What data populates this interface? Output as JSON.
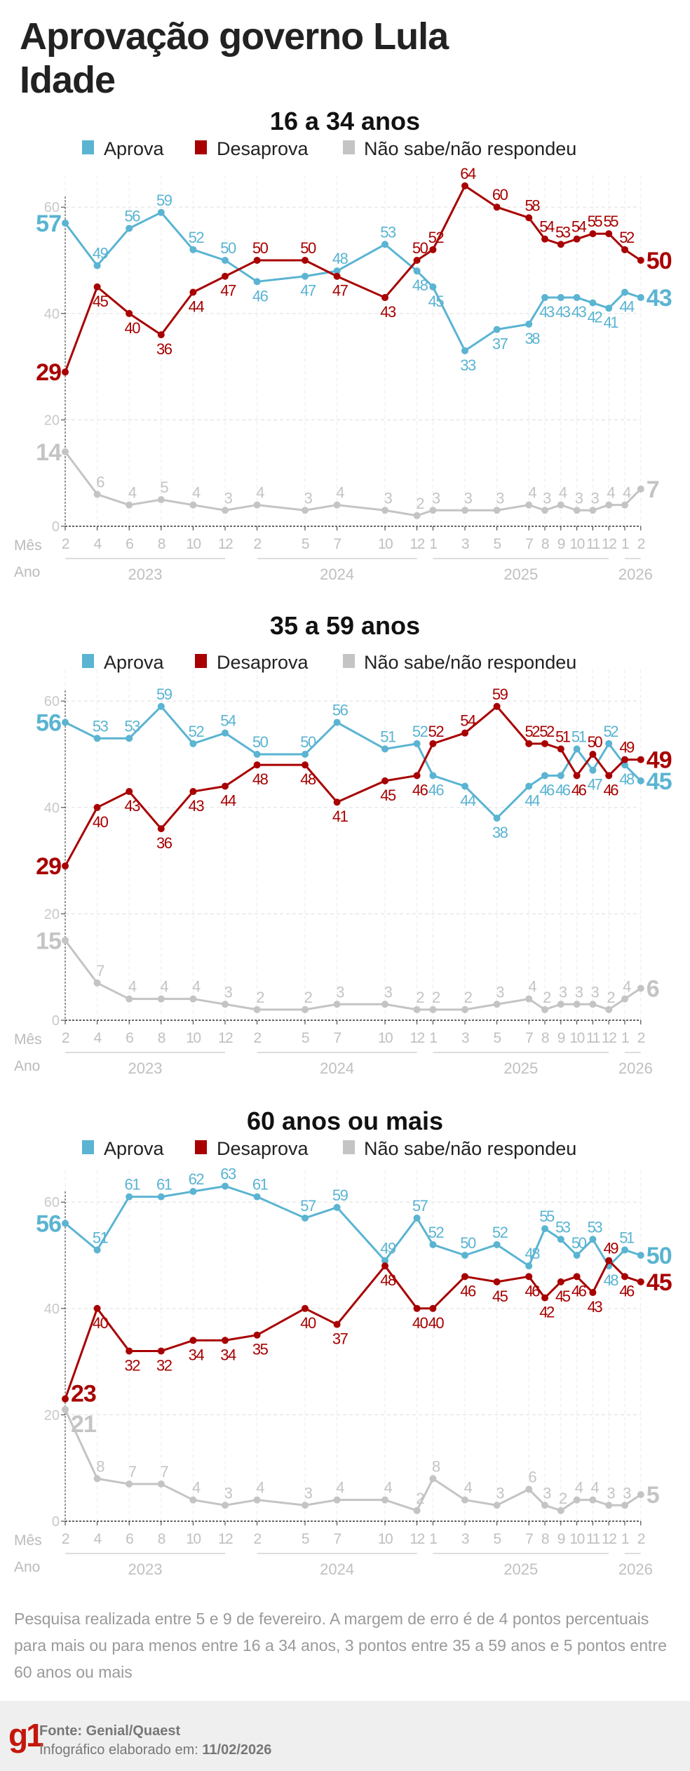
{
  "header": {
    "title_line1": "Aprovação governo Lula",
    "title_line2": "Idade"
  },
  "colors": {
    "aprova": "#5ab4d2",
    "desaprova": "#a80000",
    "nao_sabe": "#c4c4c4"
  },
  "legend": [
    "Aprova",
    "Desaprova",
    "Não sabe/não respondeu"
  ],
  "axis_labels": {
    "month": "Mês",
    "year": "Ano"
  },
  "chart_data": [
    {
      "type": "line",
      "title": "16 a 34 anos",
      "x": [
        "2023-02",
        "2023-04",
        "2023-06",
        "2023-08",
        "2023-10",
        "2023-12",
        "2024-02",
        "2024-05",
        "2024-07",
        "2024-10",
        "2024-12",
        "2025-01",
        "2025-03",
        "2025-05",
        "2025-07",
        "2025-08",
        "2025-09",
        "2025-10",
        "2025-11",
        "2025-12",
        "2026-01",
        "2026-02"
      ],
      "month_labels": [
        "2",
        "4",
        "6",
        "8",
        "10",
        "12",
        "2",
        "5",
        "7",
        "10",
        "12",
        "1",
        "3",
        "5",
        "7",
        "8",
        "9",
        "10",
        "11",
        "12",
        "1",
        "2"
      ],
      "years": [
        "2023",
        "2024",
        "2025",
        "2026"
      ],
      "yticks": [
        0,
        20,
        40,
        60
      ],
      "ylim": [
        0,
        60
      ],
      "grid": true,
      "legend_position": "top",
      "series": [
        {
          "name": "Aprova",
          "values": [
            57,
            49,
            56,
            59,
            52,
            50,
            46,
            47,
            48,
            53,
            48,
            45,
            33,
            37,
            38,
            43,
            43,
            43,
            42,
            41,
            44,
            43
          ]
        },
        {
          "name": "Desaprova",
          "values": [
            29,
            45,
            40,
            36,
            44,
            47,
            50,
            50,
            47,
            43,
            50,
            52,
            64,
            60,
            58,
            54,
            53,
            54,
            55,
            55,
            52,
            50
          ]
        },
        {
          "name": "Não sabe/não respondeu",
          "values": [
            14,
            6,
            4,
            5,
            4,
            3,
            4,
            3,
            4,
            3,
            2,
            3,
            3,
            3,
            4,
            3,
            4,
            3,
            3,
            4,
            4,
            7
          ]
        }
      ]
    },
    {
      "type": "line",
      "title": "35 a 59 anos",
      "x": [
        "2023-02",
        "2023-04",
        "2023-06",
        "2023-08",
        "2023-10",
        "2023-12",
        "2024-02",
        "2024-05",
        "2024-07",
        "2024-10",
        "2024-12",
        "2025-01",
        "2025-03",
        "2025-05",
        "2025-07",
        "2025-08",
        "2025-09",
        "2025-10",
        "2025-11",
        "2025-12",
        "2026-01",
        "2026-02"
      ],
      "month_labels": [
        "2",
        "4",
        "6",
        "8",
        "10",
        "12",
        "2",
        "5",
        "7",
        "10",
        "12",
        "1",
        "3",
        "5",
        "7",
        "8",
        "9",
        "10",
        "11",
        "12",
        "1",
        "2"
      ],
      "years": [
        "2023",
        "2024",
        "2025",
        "2026"
      ],
      "yticks": [
        0,
        20,
        40,
        60
      ],
      "ylim": [
        0,
        60
      ],
      "grid": true,
      "legend_position": "top",
      "series": [
        {
          "name": "Aprova",
          "values": [
            56,
            53,
            53,
            59,
            52,
            54,
            50,
            50,
            56,
            51,
            52,
            46,
            44,
            38,
            44,
            46,
            46,
            51,
            47,
            52,
            48,
            45
          ]
        },
        {
          "name": "Desaprova",
          "values": [
            29,
            40,
            43,
            36,
            43,
            44,
            48,
            48,
            41,
            45,
            46,
            52,
            54,
            59,
            52,
            52,
            51,
            46,
            50,
            46,
            49,
            49
          ]
        },
        {
          "name": "Não sabe/não respondeu",
          "values": [
            15,
            7,
            4,
            4,
            4,
            3,
            2,
            2,
            3,
            3,
            2,
            2,
            2,
            3,
            4,
            2,
            3,
            3,
            3,
            2,
            4,
            6
          ]
        }
      ]
    },
    {
      "type": "line",
      "title": "60 anos ou mais",
      "x": [
        "2023-02",
        "2023-04",
        "2023-06",
        "2023-08",
        "2023-10",
        "2023-12",
        "2024-02",
        "2024-05",
        "2024-07",
        "2024-10",
        "2024-12",
        "2025-01",
        "2025-03",
        "2025-05",
        "2025-07",
        "2025-08",
        "2025-09",
        "2025-10",
        "2025-11",
        "2025-12",
        "2026-01",
        "2026-02"
      ],
      "month_labels": [
        "2",
        "4",
        "6",
        "8",
        "10",
        "12",
        "2",
        "5",
        "7",
        "10",
        "12",
        "1",
        "3",
        "5",
        "7",
        "8",
        "9",
        "10",
        "11",
        "12",
        "1",
        "2"
      ],
      "years": [
        "2023",
        "2024",
        "2025",
        "2026"
      ],
      "yticks": [
        0,
        20,
        40,
        60
      ],
      "ylim": [
        0,
        60
      ],
      "grid": true,
      "legend_position": "top",
      "series": [
        {
          "name": "Aprova",
          "values": [
            56,
            51,
            61,
            61,
            62,
            63,
            61,
            57,
            59,
            49,
            57,
            52,
            50,
            52,
            48,
            55,
            53,
            50,
            53,
            48,
            51,
            50
          ]
        },
        {
          "name": "Desaprova",
          "values": [
            23,
            40,
            32,
            32,
            34,
            34,
            35,
            40,
            37,
            48,
            40,
            40,
            46,
            45,
            46,
            42,
            45,
            46,
            43,
            49,
            46,
            45
          ]
        },
        {
          "name": "Não sabe/não respondeu",
          "values": [
            21,
            8,
            7,
            7,
            4,
            3,
            4,
            3,
            4,
            4,
            2,
            8,
            4,
            3,
            6,
            3,
            2,
            4,
            4,
            3,
            3,
            5
          ]
        }
      ]
    }
  ],
  "note": "Pesquisa realizada entre 5 e 9 de fevereiro. A margem de erro é de 4 pontos percentuais para mais ou para menos entre 16 a 34 anos, 3 pontos entre 35 a 59 anos e 5 pontos entre 60 anos ou mais",
  "footer": {
    "logo": "g1",
    "source_label": "Fonte:",
    "source": "Genial/Quaest",
    "made_label": "Infográfico elaborado em:",
    "date": "11/02/2026"
  }
}
